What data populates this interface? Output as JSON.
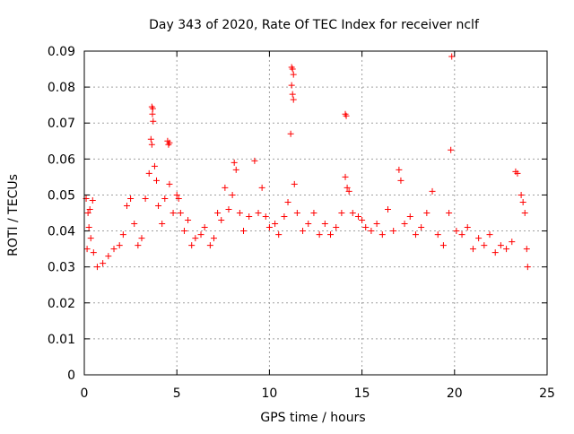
{
  "chart_data": {
    "type": "scatter",
    "title": "Day 343 of 2020, Rate Of TEC Index for receiver nclf",
    "xlabel": "GPS time / hours",
    "ylabel": "ROTI / TECUs",
    "xlim": [
      0,
      25
    ],
    "ylim": [
      0,
      0.09
    ],
    "xticks": [
      0,
      5,
      10,
      15,
      20,
      25
    ],
    "yticks": [
      0,
      0.01,
      0.02,
      0.03,
      0.04,
      0.05,
      0.06,
      0.07,
      0.08,
      0.09
    ],
    "xtick_labels": [
      "0",
      "5",
      "10",
      "15",
      "20",
      "25"
    ],
    "ytick_labels": [
      "0",
      "0.01",
      "0.02",
      "0.03",
      "0.04",
      "0.05",
      "0.06",
      "0.07",
      "0.08",
      "0.09"
    ],
    "grid": true,
    "marker": "+",
    "color": "#ff0000",
    "points": [
      [
        0.1,
        0.049
      ],
      [
        0.2,
        0.045
      ],
      [
        0.3,
        0.046
      ],
      [
        0.45,
        0.0485
      ],
      [
        0.25,
        0.041
      ],
      [
        0.35,
        0.038
      ],
      [
        0.15,
        0.035
      ],
      [
        0.5,
        0.034
      ],
      [
        0.7,
        0.03
      ],
      [
        1.0,
        0.031
      ],
      [
        1.3,
        0.033
      ],
      [
        1.6,
        0.035
      ],
      [
        1.9,
        0.036
      ],
      [
        2.1,
        0.039
      ],
      [
        2.3,
        0.047
      ],
      [
        2.5,
        0.049
      ],
      [
        2.7,
        0.042
      ],
      [
        2.9,
        0.036
      ],
      [
        3.1,
        0.038
      ],
      [
        3.3,
        0.049
      ],
      [
        3.5,
        0.056
      ],
      [
        3.65,
        0.0745
      ],
      [
        3.7,
        0.074
      ],
      [
        3.68,
        0.0725
      ],
      [
        3.72,
        0.0705
      ],
      [
        3.6,
        0.0655
      ],
      [
        3.65,
        0.064
      ],
      [
        3.8,
        0.058
      ],
      [
        3.9,
        0.054
      ],
      [
        4.0,
        0.047
      ],
      [
        4.2,
        0.042
      ],
      [
        4.35,
        0.049
      ],
      [
        4.5,
        0.065
      ],
      [
        4.55,
        0.064
      ],
      [
        4.6,
        0.0645
      ],
      [
        4.6,
        0.053
      ],
      [
        4.8,
        0.045
      ],
      [
        5.0,
        0.05
      ],
      [
        5.1,
        0.049
      ],
      [
        5.2,
        0.045
      ],
      [
        5.4,
        0.04
      ],
      [
        5.6,
        0.043
      ],
      [
        5.8,
        0.036
      ],
      [
        6.0,
        0.038
      ],
      [
        6.3,
        0.039
      ],
      [
        6.5,
        0.041
      ],
      [
        6.8,
        0.036
      ],
      [
        7.0,
        0.038
      ],
      [
        7.2,
        0.045
      ],
      [
        7.4,
        0.043
      ],
      [
        7.6,
        0.052
      ],
      [
        7.8,
        0.046
      ],
      [
        8.0,
        0.05
      ],
      [
        8.1,
        0.059
      ],
      [
        8.2,
        0.057
      ],
      [
        8.4,
        0.045
      ],
      [
        8.6,
        0.04
      ],
      [
        8.9,
        0.044
      ],
      [
        9.2,
        0.0595
      ],
      [
        9.4,
        0.045
      ],
      [
        9.6,
        0.052
      ],
      [
        9.8,
        0.044
      ],
      [
        10.0,
        0.041
      ],
      [
        10.3,
        0.042
      ],
      [
        10.5,
        0.039
      ],
      [
        10.8,
        0.044
      ],
      [
        11.0,
        0.048
      ],
      [
        11.2,
        0.0855
      ],
      [
        11.25,
        0.085
      ],
      [
        11.3,
        0.0835
      ],
      [
        11.2,
        0.0805
      ],
      [
        11.25,
        0.078
      ],
      [
        11.3,
        0.0765
      ],
      [
        11.15,
        0.067
      ],
      [
        11.35,
        0.053
      ],
      [
        11.5,
        0.045
      ],
      [
        11.8,
        0.04
      ],
      [
        12.1,
        0.042
      ],
      [
        12.4,
        0.045
      ],
      [
        12.7,
        0.039
      ],
      [
        13.0,
        0.042
      ],
      [
        13.3,
        0.039
      ],
      [
        13.6,
        0.041
      ],
      [
        13.9,
        0.045
      ],
      [
        14.1,
        0.0725
      ],
      [
        14.15,
        0.072
      ],
      [
        14.1,
        0.055
      ],
      [
        14.2,
        0.052
      ],
      [
        14.3,
        0.051
      ],
      [
        14.5,
        0.045
      ],
      [
        14.8,
        0.044
      ],
      [
        15.0,
        0.043
      ],
      [
        15.2,
        0.041
      ],
      [
        15.5,
        0.04
      ],
      [
        15.8,
        0.042
      ],
      [
        16.1,
        0.039
      ],
      [
        16.4,
        0.046
      ],
      [
        16.7,
        0.04
      ],
      [
        17.0,
        0.057
      ],
      [
        17.1,
        0.054
      ],
      [
        17.3,
        0.042
      ],
      [
        17.6,
        0.044
      ],
      [
        17.9,
        0.039
      ],
      [
        18.2,
        0.041
      ],
      [
        18.5,
        0.045
      ],
      [
        18.8,
        0.051
      ],
      [
        19.1,
        0.039
      ],
      [
        19.4,
        0.036
      ],
      [
        19.7,
        0.045
      ],
      [
        19.85,
        0.0885
      ],
      [
        19.8,
        0.0625
      ],
      [
        20.1,
        0.04
      ],
      [
        20.4,
        0.039
      ],
      [
        20.7,
        0.041
      ],
      [
        21.0,
        0.035
      ],
      [
        21.3,
        0.038
      ],
      [
        21.6,
        0.036
      ],
      [
        21.9,
        0.039
      ],
      [
        22.2,
        0.034
      ],
      [
        22.5,
        0.036
      ],
      [
        22.8,
        0.035
      ],
      [
        23.1,
        0.037
      ],
      [
        23.3,
        0.0565
      ],
      [
        23.4,
        0.056
      ],
      [
        23.6,
        0.05
      ],
      [
        23.7,
        0.048
      ],
      [
        23.8,
        0.045
      ],
      [
        23.9,
        0.035
      ],
      [
        23.95,
        0.03
      ]
    ]
  }
}
